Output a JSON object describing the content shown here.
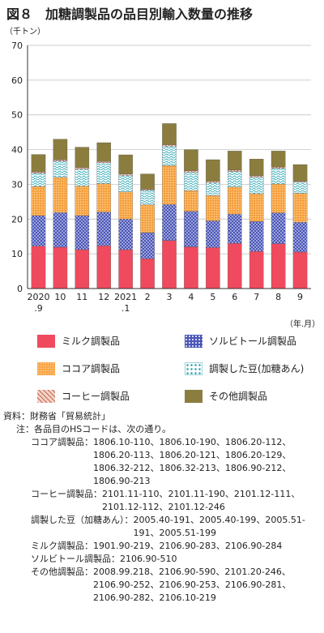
{
  "title": "図８　加糖調製品の品目別輸入数量の推移",
  "unit_y": "（千トン）",
  "unit_x": "（年.月）",
  "chart_data": {
    "type": "bar",
    "stacked": true,
    "ylim": [
      0,
      70
    ],
    "yticks": [
      0,
      10,
      20,
      30,
      40,
      50,
      60,
      70
    ],
    "categories": [
      [
        "2020",
        ".9"
      ],
      [
        "10"
      ],
      [
        "11"
      ],
      [
        "12"
      ],
      [
        "2021",
        ".1"
      ],
      [
        "2"
      ],
      [
        "3"
      ],
      [
        "4"
      ],
      [
        "5"
      ],
      [
        "6"
      ],
      [
        "7"
      ],
      [
        "8"
      ],
      [
        "9"
      ]
    ],
    "series": [
      {
        "name": "ミルク調製品",
        "color": "#f04a5e",
        "pattern": "solid",
        "values": [
          12.2,
          11.9,
          11.2,
          12.3,
          11.2,
          8.6,
          13.8,
          12.0,
          11.8,
          13.0,
          10.7,
          12.9,
          10.5
        ]
      },
      {
        "name": "ソルビトール調製品",
        "color": "#4a56b8",
        "pattern": "dots",
        "values": [
          8.8,
          10.0,
          9.8,
          9.7,
          8.8,
          7.5,
          10.4,
          10.2,
          7.7,
          8.4,
          8.6,
          8.9,
          8.6
        ]
      },
      {
        "name": "ココア調製品",
        "color": "#f9a94c",
        "pattern": "dense",
        "values": [
          8.4,
          10.1,
          8.5,
          8.2,
          7.8,
          8.0,
          11.2,
          6.0,
          7.3,
          7.8,
          8.0,
          8.3,
          8.3
        ]
      },
      {
        "name": "調製した豆(加糖あん)",
        "color": "#2fa9b5",
        "pattern": "wave",
        "values": [
          3.8,
          4.7,
          4.9,
          6.0,
          4.8,
          4.2,
          5.6,
          5.3,
          3.7,
          4.5,
          4.8,
          4.5,
          3.2
        ]
      },
      {
        "name": "コーヒー調製品",
        "color": "#d9826a",
        "pattern": "diag",
        "values": [
          0.4,
          0.4,
          0.4,
          0.4,
          0.4,
          0.3,
          0.4,
          0.4,
          0.4,
          0.4,
          0.4,
          0.4,
          0.3
        ]
      },
      {
        "name": "その他調製品",
        "color": "#8b7d3e",
        "pattern": "solid",
        "values": [
          5.0,
          5.9,
          5.9,
          5.4,
          5.5,
          4.4,
          6.1,
          6.1,
          6.2,
          5.5,
          4.8,
          4.6,
          4.8
        ]
      }
    ]
  },
  "notes": {
    "source": "資料：財務省「貿易統計」",
    "note_intro": "注：各品目のHSコードは、次の通り。",
    "items": [
      {
        "label": "ココア調製品：",
        "codes": "1806.10-110、1806.10-190、1806.20-112、1806.20-113、1806.20-121、1806.20-129、1806.32-212、1806.32-213、1806.90-212、1806.90-213"
      },
      {
        "label": "コーヒー調製品：",
        "codes": "2101.11-110、2101.11-190、2101.12-111、2101.12-112、2101.12-246"
      },
      {
        "label": "調製した豆（加糖あん）：",
        "codes": "2005.40-191、2005.40-199、2005.51-191、2005.51-199"
      },
      {
        "label": "ミルク調製品：",
        "codes": "1901.90-219、2106.90-283、2106.90-284"
      },
      {
        "label": "ソルビトール調製品：",
        "codes": "2106.90-510"
      },
      {
        "label": "その他調製品：",
        "codes": "2008.99.218、2106.90-590、2101.20-246、2106.90-252、2106.90-253、2106.90-281、2106.90-282、2106.10-219"
      }
    ]
  }
}
